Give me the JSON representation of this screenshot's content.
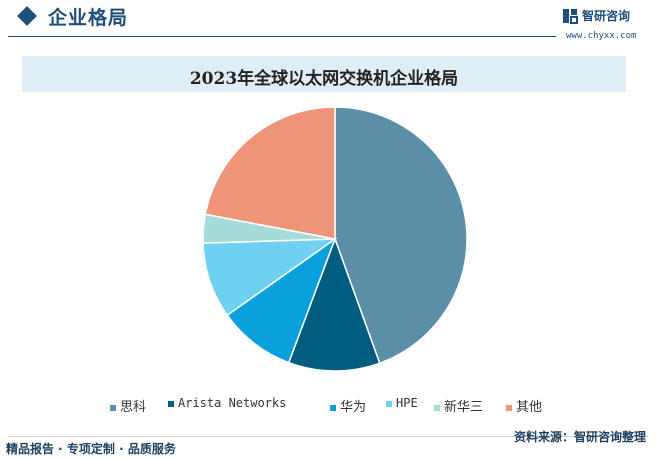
{
  "header": {
    "title": "企业格局",
    "logo_text": "智研咨询",
    "logo_url": "www.chyxx.com"
  },
  "colors": {
    "brand": "#1e4f7c",
    "title_bar": "#dfeef6"
  },
  "chart_data": {
    "type": "pie",
    "title": "2023年全球以太网交换机企业格局",
    "legend_position": "bottom",
    "categories": [
      "思科",
      "Arista Networks",
      "华为",
      "HPE",
      "新华三",
      "其他"
    ],
    "values": [
      44.5,
      11.2,
      9.5,
      9.3,
      3.5,
      22.0
    ],
    "colors": [
      "#5b8fa8",
      "#005d80",
      "#0aa0dc",
      "#6fd0f2",
      "#a5dcd9",
      "#ee9479"
    ]
  },
  "footer": {
    "left": "精品报告 · 专项定制 · 品质服务",
    "right": "资料来源：智研咨询整理"
  }
}
